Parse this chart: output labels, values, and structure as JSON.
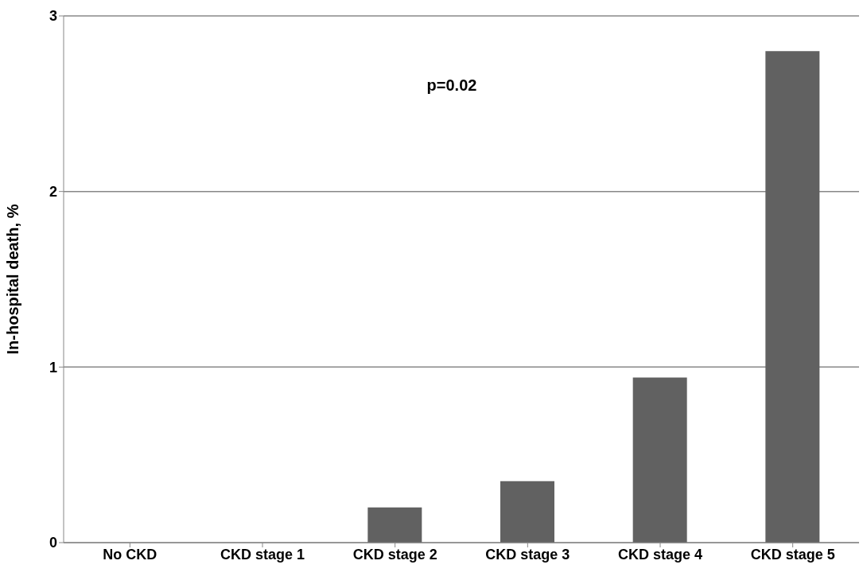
{
  "chart_data": {
    "type": "bar",
    "ylabel": "In-hospital death, %",
    "categories": [
      "No CKD",
      "CKD stage 1",
      "CKD stage 2",
      "CKD stage 3",
      "CKD stage 4",
      "CKD stage 5"
    ],
    "values": [
      0,
      0,
      0.2,
      0.35,
      0.94,
      2.8
    ],
    "color": "#616161",
    "ylim": [
      0,
      3
    ],
    "yticks": [
      0,
      1,
      2,
      3
    ],
    "grid": "y",
    "annotations": [
      "p=0.02"
    ]
  }
}
